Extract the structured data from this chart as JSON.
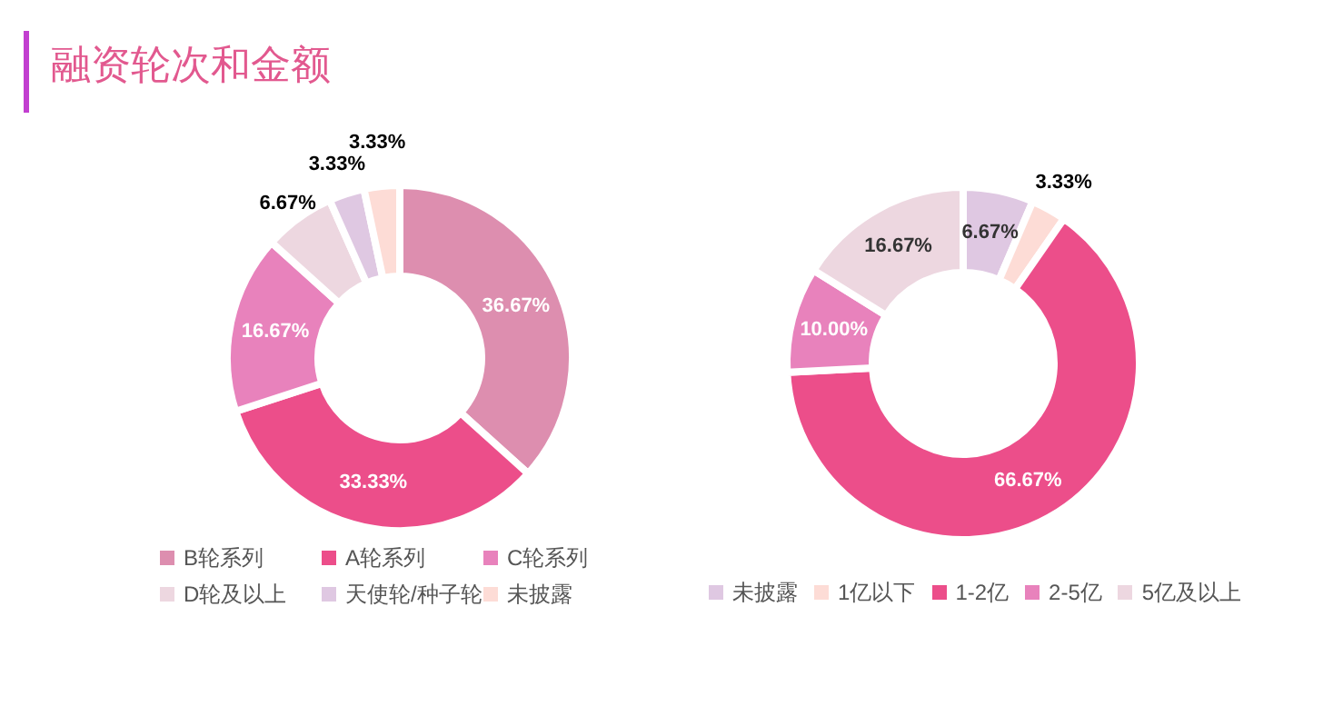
{
  "chart_data": [
    {
      "type": "donut",
      "title": "融资轮次和金额",
      "categories": [
        "B轮系列",
        "A轮系列",
        "C轮系列",
        "D轮及以上",
        "天使轮/种子轮",
        "未披露"
      ],
      "values": [
        36.67,
        33.33,
        16.67,
        6.67,
        3.33,
        3.33
      ],
      "colors": [
        "#dd8eaf",
        "#ec4e8a",
        "#e882bc",
        "#edd7e0",
        "#dfc8e2",
        "#fddcd6"
      ],
      "value_labels": [
        "36.67%",
        "33.33%",
        "16.67%",
        "6.67%",
        "3.33%",
        "3.33%"
      ],
      "legend": "bottom"
    },
    {
      "type": "donut",
      "categories": [
        "未披露",
        "1亿以下",
        "1-2亿",
        "2-5亿",
        "5亿及以上"
      ],
      "values": [
        6.67,
        3.33,
        66.67,
        10.0,
        16.67
      ],
      "colors": [
        "#dfc8e2",
        "#fddcd6",
        "#ec4e8a",
        "#e882bc",
        "#edd7e0"
      ],
      "value_labels": [
        "6.67%",
        "3.33%",
        "66.67%",
        "10.00%",
        "16.67%"
      ],
      "legend": "bottom"
    }
  ]
}
